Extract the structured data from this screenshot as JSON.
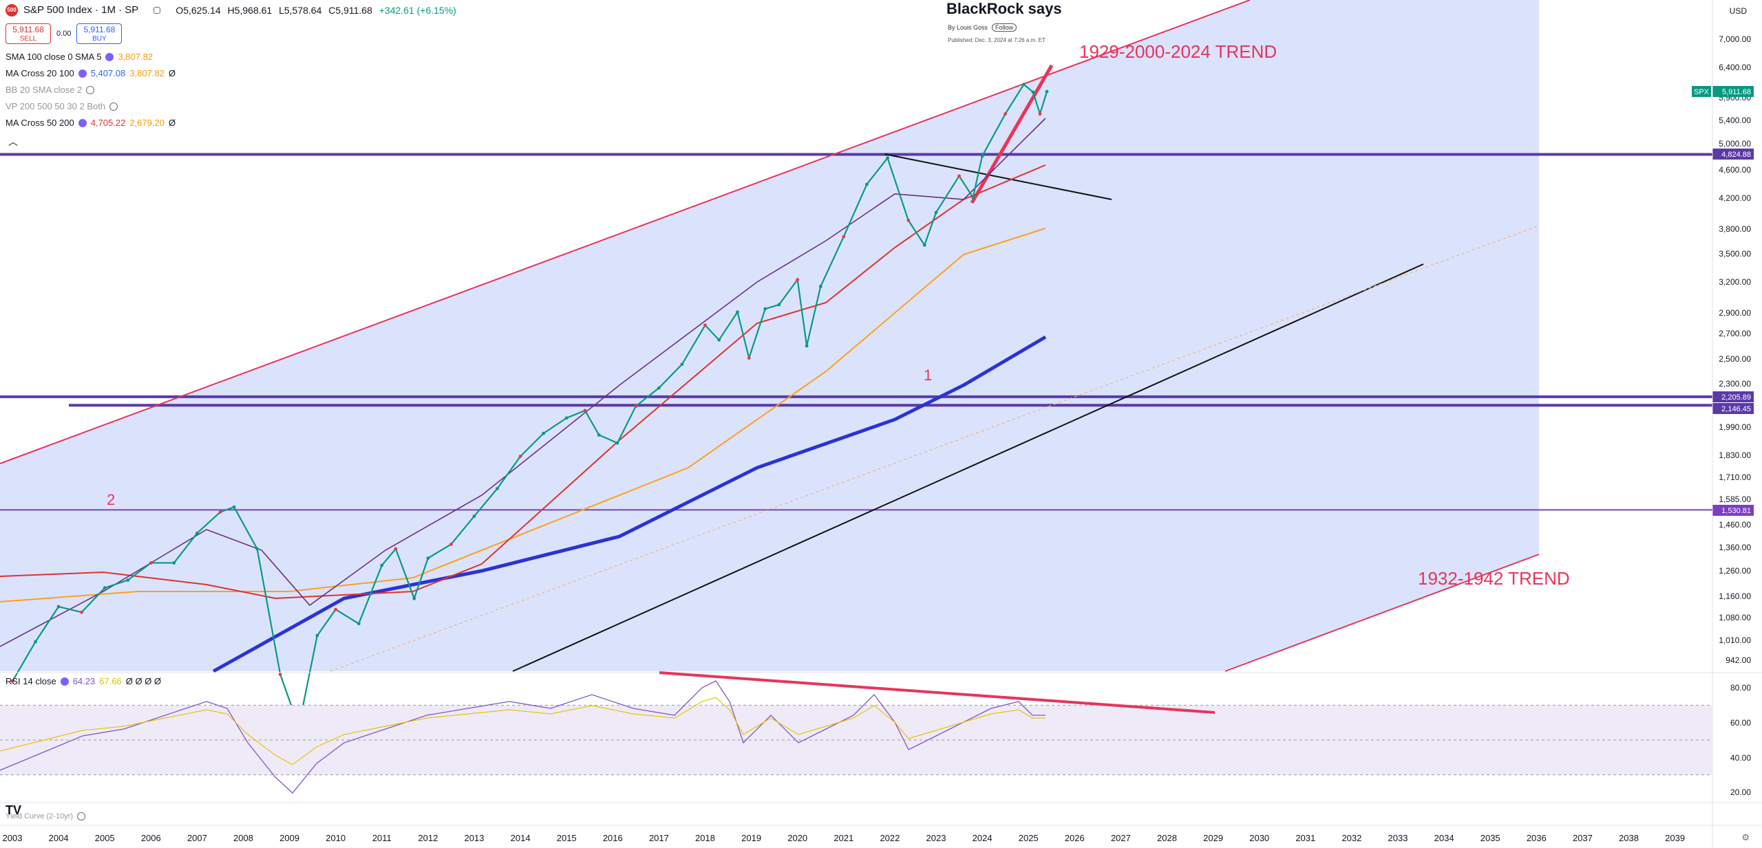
{
  "header": {
    "symbol": "S&P 500 Index · 1M · SP",
    "logo_text": "500",
    "ohlc": {
      "o": "O5,625.14",
      "h": "H5,968.61",
      "l": "L5,578.64",
      "c": "C5,911.68",
      "chg": "+342.61 (+6.15%)"
    },
    "sell_price": "5,911.68",
    "sell_label": "SELL",
    "spread": "0.00",
    "buy_price": "5,911.68",
    "buy_label": "BUY"
  },
  "indicators": [
    {
      "label": "SMA 100 close 0 SMA 5",
      "values": [
        "3,807.82"
      ],
      "colors": [
        "#ff9800"
      ]
    },
    {
      "label": "MA Cross 20 100",
      "values": [
        "5,407.08",
        "3,807.82",
        "Ø"
      ],
      "colors": [
        "#2962ff",
        "#ff9800",
        "#131722"
      ]
    },
    {
      "label": "BB 20 SMA close 2",
      "values": [],
      "colors": []
    },
    {
      "label": "VP 200 500 50 30 2 Both",
      "values": [],
      "colors": []
    },
    {
      "label": "MA Cross 50 200",
      "values": [
        "4,705.22",
        "2,679.20",
        "Ø"
      ],
      "colors": [
        "#e0312d",
        "#ff9800",
        "#131722"
      ]
    }
  ],
  "note": {
    "title": "BlackRock says",
    "by": "By Louis Goss",
    "follow": "Follow",
    "published": "Published: Dec. 3, 2024 at 7:26 a.m. ET"
  },
  "annotations": {
    "trend_upper": "1929-2000-2024 TREND",
    "trend_lower": "1932-1942 TREND",
    "marker_1": "1",
    "marker_2": "2"
  },
  "price_axis": {
    "currency": "USD",
    "ticks": [
      "7,000.00",
      "6,400.00",
      "5,900.00",
      "5,400.00",
      "5,000.00",
      "4,600.00",
      "4,200.00",
      "3,800.00",
      "3,500.00",
      "3,200.00",
      "2,900.00",
      "2,700.00",
      "2,500.00",
      "2,300.00",
      "1,990.00",
      "1,830.00",
      "1,710.00",
      "1,585.00",
      "1,460.00",
      "1,360.00",
      "1,260.00",
      "1,160.00",
      "1,080.00",
      "1,010.00",
      "942.00"
    ],
    "tags": [
      {
        "text": "SPX",
        "value": "5,911.68",
        "color": "#089981"
      },
      {
        "text": "",
        "value": "4,824.88",
        "color": "#5b3aa8"
      },
      {
        "text": "",
        "value": "2,205.89",
        "color": "#5b3aa8"
      },
      {
        "text": "",
        "value": "2,146.45",
        "color": "#5b3aa8"
      },
      {
        "text": "",
        "value": "1,530.81",
        "color": "#7b3fc0"
      }
    ]
  },
  "rsi": {
    "label": "RSI 14 close",
    "values": [
      "64.23",
      "67.66",
      "Ø Ø Ø Ø"
    ],
    "ticks": [
      "80.00",
      "60.00",
      "40.00",
      "20.00"
    ]
  },
  "bottom_pane_label": "Yield Curve (2-10yr)",
  "time_axis": [
    "2003",
    "2004",
    "2005",
    "2006",
    "2007",
    "2008",
    "2009",
    "2010",
    "2011",
    "2012",
    "2013",
    "2014",
    "2015",
    "2016",
    "2017",
    "2018",
    "2019",
    "2020",
    "2021",
    "2022",
    "2023",
    "2024",
    "2025",
    "2026",
    "2027",
    "2028",
    "2029",
    "2030",
    "2031",
    "2032",
    "2033",
    "2034",
    "2035",
    "2036",
    "2037",
    "2038",
    "2039"
  ],
  "chart_data": {
    "type": "line",
    "title": "S&P 500 Index · 1M · SP",
    "scale": "log",
    "ylim": [
      900,
      7200
    ],
    "x_range": [
      "2003",
      "2039"
    ],
    "series": [
      {
        "name": "S&P 500 Index",
        "x": [
          2003.0,
          2003.5,
          2004.0,
          2004.5,
          2005.0,
          2005.5,
          2006.0,
          2006.5,
          2007.0,
          2007.5,
          2007.8,
          2008.3,
          2008.8,
          2009.2,
          2009.6,
          2010.0,
          2010.5,
          2011.0,
          2011.3,
          2011.7,
          2012.0,
          2012.5,
          2013.0,
          2013.5,
          2014.0,
          2014.5,
          2015.0,
          2015.4,
          2015.7,
          2016.1,
          2016.5,
          2017.0,
          2017.5,
          2018.0,
          2018.3,
          2018.7,
          2018.95,
          2019.3,
          2019.6,
          2020.0,
          2020.2,
          2020.5,
          2021.0,
          2021.5,
          2021.95,
          2022.4,
          2022.75,
          2023.0,
          2023.5,
          2023.8,
          2024.0,
          2024.5,
          2024.9,
          2025.1,
          2025.25,
          2025.4
        ],
        "values": [
          880,
          1000,
          1120,
          1100,
          1190,
          1220,
          1290,
          1290,
          1420,
          1520,
          1545,
          1350,
          900,
          760,
          1020,
          1110,
          1060,
          1280,
          1350,
          1150,
          1310,
          1370,
          1500,
          1640,
          1820,
          1960,
          2060,
          2110,
          1950,
          1900,
          2140,
          2270,
          2450,
          2780,
          2650,
          2900,
          2500,
          2930,
          2970,
          3220,
          2600,
          3150,
          3700,
          4380,
          4770,
          3900,
          3600,
          4000,
          4500,
          4200,
          4800,
          5500,
          6050,
          5900,
          5500,
          5911
        ]
      }
    ],
    "overlays": {
      "horizontal_levels": [
        4824.88,
        2205.89,
        2146.45,
        1530.81
      ],
      "rsi_values": [
        64.23,
        67.66
      ]
    }
  }
}
